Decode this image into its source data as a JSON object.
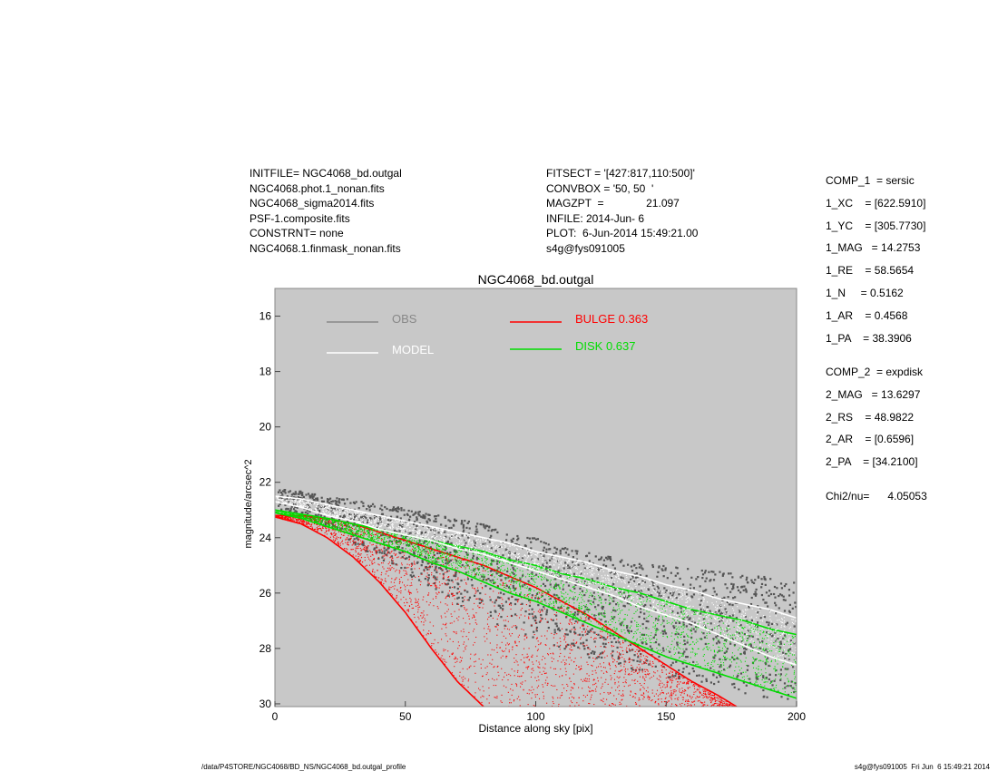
{
  "header_left": [
    "INITFILE= NGC4068_bd.outgal",
    "NGC4068.phot.1_nonan.fits",
    "NGC4068_sigma2014.fits",
    "PSF-1.composite.fits",
    "CONSTRNT= none",
    "NGC4068.1.finmask_nonan.fits"
  ],
  "header_middle": [
    "FITSECT = '[427:817,110:500]'",
    "CONVBOX = '50, 50  '",
    "MAGZPT  =              21.097",
    "INFILE: 2014-Jun- 6",
    "PLOT:  6-Jun-2014 15:49:21.00",
    "s4g@fys091005"
  ],
  "side_panel": {
    "comp1": [
      "COMP_1  = sersic",
      "1_XC    = [622.5910]",
      "1_YC    = [305.7730]",
      "1_MAG   = 14.2753",
      "1_RE    = 58.5654",
      "1_N     = 0.5162",
      "1_AR    = 0.4568",
      "1_PA    = 38.3906"
    ],
    "comp2": [
      "COMP_2  = expdisk",
      "2_MAG   = 13.6297",
      "2_RS    = 48.9822",
      "2_AR    = [0.6596]",
      "2_PA    = [34.2100]"
    ],
    "chi2": "Chi2/nu=      4.05053"
  },
  "footer": {
    "path": "/data/P4STORE/NGC4068/BD_NS/NGC4068_bd.outgal_profile",
    "stamp": "s4g@fys091005  Fri Jun  6 15:49:21 2014"
  },
  "colors": {
    "plot_bg": "#c8c8c8",
    "obs": "#555555",
    "obs_legend": "#888888",
    "model": "#ffffff",
    "bulge": "#ff0000",
    "disk": "#00dd00"
  },
  "chart_data": {
    "type": "scatter",
    "title": "NGC4068_bd.outgal",
    "xlabel": "Distance along sky [pix]",
    "ylabel": "magnitude/arcsec^2",
    "xlim": [
      0,
      200
    ],
    "ylim": [
      30.1,
      15.0
    ],
    "y_inverted": true,
    "xticks": [
      0,
      50,
      100,
      150,
      200
    ],
    "yticks": [
      16,
      18,
      20,
      22,
      24,
      26,
      28,
      30
    ],
    "legend": [
      {
        "name": "OBS",
        "color": "#888888"
      },
      {
        "name": "MODEL",
        "color": "#ffffff"
      },
      {
        "name": "BULGE  0.363",
        "color": "#ff0000"
      },
      {
        "name": "DISK  0.637",
        "color": "#00dd00"
      }
    ],
    "series": [
      {
        "name": "OBS",
        "style": "points",
        "x": [
          0,
          10,
          20,
          30,
          40,
          50,
          60,
          70,
          80,
          90,
          100,
          110,
          120,
          130,
          140,
          150,
          160,
          170,
          180,
          190,
          200
        ],
        "y_low": [
          22.2,
          22.3,
          22.5,
          22.6,
          22.8,
          22.9,
          23.1,
          23.3,
          23.5,
          23.8,
          24.0,
          24.3,
          24.5,
          24.7,
          24.9,
          25.0,
          25.1,
          25.2,
          25.3,
          25.4,
          25.5
        ],
        "y_high": [
          22.9,
          23.2,
          23.6,
          24.2,
          24.8,
          25.3,
          25.9,
          26.4,
          26.9,
          27.4,
          27.7,
          28.0,
          28.3,
          28.6,
          28.8,
          29.0,
          29.2,
          29.4,
          29.6,
          29.8,
          30.0
        ]
      },
      {
        "name": "MODEL",
        "style": "band",
        "x": [
          0,
          10,
          20,
          30,
          40,
          50,
          60,
          70,
          80,
          90,
          100,
          110,
          120,
          130,
          140,
          150,
          160,
          170,
          180,
          190,
          200
        ],
        "y_low": [
          22.5,
          22.6,
          22.8,
          23.0,
          23.2,
          23.4,
          23.6,
          23.8,
          24.0,
          24.2,
          24.5,
          24.7,
          24.9,
          25.2,
          25.4,
          25.7,
          25.9,
          26.2,
          26.4,
          26.6,
          26.9
        ],
        "y_high": [
          22.7,
          22.9,
          23.2,
          23.4,
          23.7,
          23.9,
          24.1,
          24.4,
          24.6,
          24.9,
          25.2,
          25.5,
          25.8,
          26.1,
          26.5,
          26.8,
          27.1,
          27.5,
          27.9,
          28.3,
          28.6
        ]
      },
      {
        "name": "BULGE",
        "style": "band",
        "x": [
          0,
          10,
          20,
          30,
          40,
          50,
          60,
          70,
          80,
          90,
          100,
          110,
          120,
          130,
          140,
          150,
          160,
          170,
          177
        ],
        "y_low": [
          23.2,
          23.2,
          23.3,
          23.5,
          23.8,
          24.1,
          24.4,
          24.7,
          25.0,
          25.4,
          25.8,
          26.3,
          26.8,
          27.4,
          28.0,
          28.6,
          29.2,
          29.7,
          30.1
        ],
        "y_high": [
          23.25,
          23.5,
          24.0,
          24.7,
          25.6,
          26.7,
          28.0,
          29.2,
          30.1,
          null,
          null,
          null,
          null,
          null,
          null,
          null,
          null,
          null,
          null
        ]
      },
      {
        "name": "DISK",
        "style": "band",
        "x": [
          0,
          10,
          20,
          30,
          40,
          50,
          60,
          70,
          80,
          90,
          100,
          110,
          120,
          130,
          140,
          150,
          160,
          170,
          180,
          190,
          200
        ],
        "y_low": [
          23.0,
          23.15,
          23.3,
          23.5,
          23.7,
          23.9,
          24.1,
          24.3,
          24.5,
          24.8,
          25.0,
          25.3,
          25.5,
          25.8,
          26.0,
          26.3,
          26.6,
          26.8,
          27.0,
          27.3,
          27.5
        ],
        "y_high": [
          23.1,
          23.3,
          23.6,
          23.9,
          24.2,
          24.5,
          24.9,
          25.2,
          25.6,
          26.0,
          26.3,
          26.7,
          27.1,
          27.5,
          27.9,
          28.3,
          28.6,
          28.9,
          29.2,
          29.5,
          29.8
        ]
      }
    ]
  }
}
